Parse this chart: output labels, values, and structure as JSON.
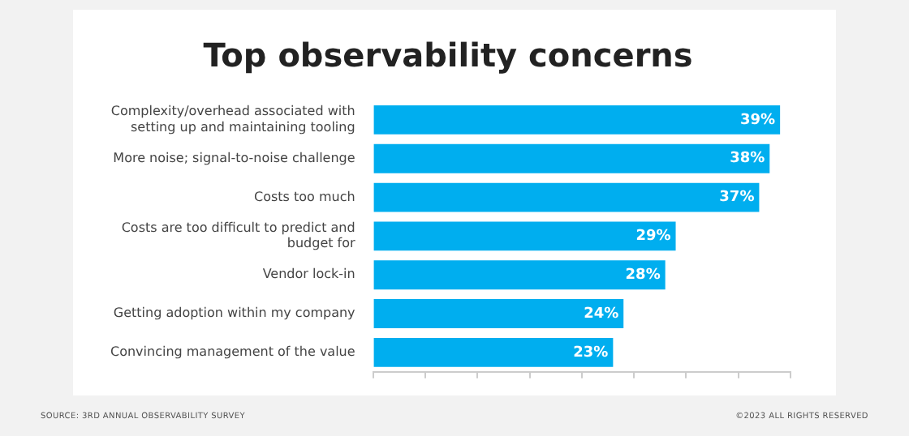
{
  "chart_data": {
    "type": "bar",
    "orientation": "horizontal",
    "title": "Top observability concerns",
    "categories": [
      "Complexity/overhead associated with setting up and maintaining tooling",
      "More noise; signal-to-noise challenge",
      "Costs too much",
      "Costs are too difficult to predict and budget for",
      "Vendor lock-in",
      "Getting adoption within my company",
      "Convincing management of the value"
    ],
    "values": [
      39,
      38,
      37,
      29,
      28,
      24,
      23
    ],
    "value_labels": [
      "39%",
      "38%",
      "37%",
      "29%",
      "28%",
      "24%",
      "23%"
    ],
    "color": "#00aeef",
    "xlim": [
      0,
      40
    ],
    "xticks": [
      {
        "value": 0,
        "label": null
      },
      {
        "value": 5,
        "label": null
      },
      {
        "value": 10,
        "label": null
      },
      {
        "value": 15,
        "label": null
      },
      {
        "value": 20,
        "label": null
      },
      {
        "value": 25,
        "label": null
      },
      {
        "value": 30,
        "label": null
      },
      {
        "value": 35,
        "label": null
      },
      {
        "value": 40,
        "label": null
      }
    ],
    "tick_labels": "y",
    "annotations": [
      "SOURCE: 3RD ANNUAL OBSERVABILITY SURVEY",
      "©2023 ALL RIGHTS RESERVED"
    ]
  }
}
